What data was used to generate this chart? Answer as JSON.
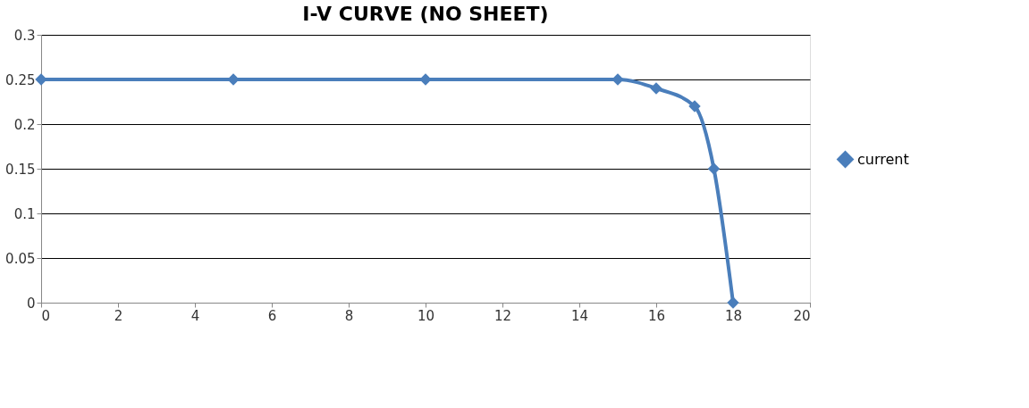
{
  "chart_data": {
    "type": "line",
    "title": "I-V CURVE (NO SHEET)",
    "x": [
      0,
      5,
      10,
      15,
      16,
      17,
      17.5,
      18
    ],
    "series": [
      {
        "name": "current",
        "color": "#4a7ebb",
        "values": [
          0.25,
          0.25,
          0.25,
          0.25,
          0.24,
          0.22,
          0.15,
          0
        ]
      }
    ],
    "xlim": [
      0,
      20
    ],
    "xticks": [
      0,
      2,
      4,
      6,
      8,
      10,
      12,
      14,
      16,
      18,
      20
    ],
    "ylim": [
      0,
      0.3
    ],
    "yticks": [
      0,
      0.05,
      0.1,
      0.15,
      0.2,
      0.25,
      {
        "value": 0.3,
        "label": "0.3"
      }
    ],
    "grid": "y",
    "legend": "right",
    "marker": "diamond",
    "line_style": "solid"
  }
}
